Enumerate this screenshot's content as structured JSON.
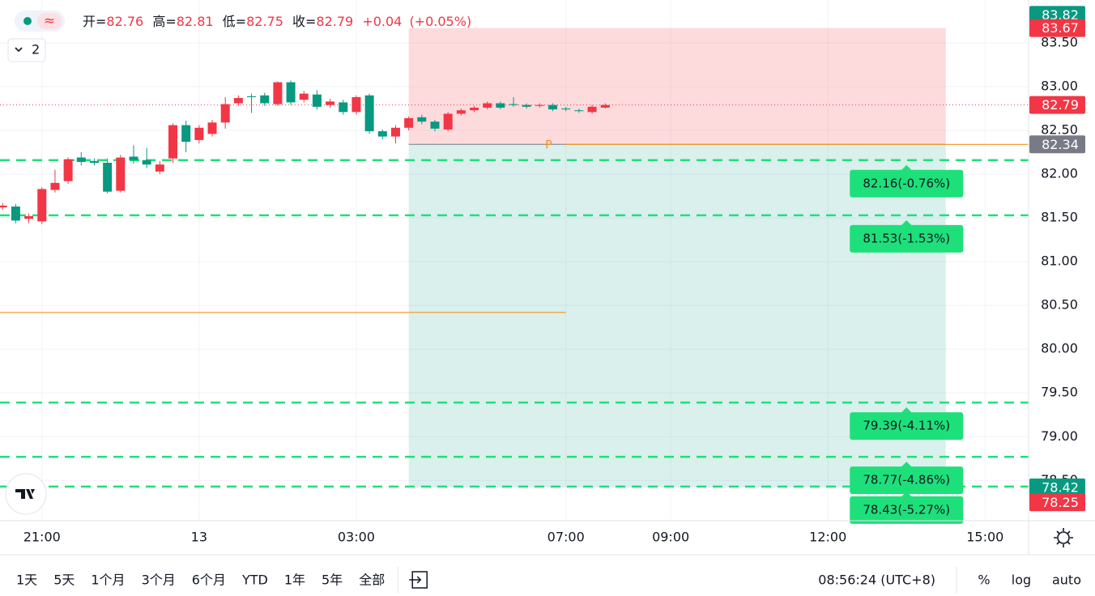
{
  "header": {
    "open_label": "开=",
    "open": 82.76,
    "high_label": "高=",
    "high": 82.81,
    "low_label": "低=",
    "low": 82.75,
    "close_label": "收=",
    "close": 82.79,
    "change": "+0.04",
    "change_pct": "(+0.05%)"
  },
  "interval_button": "2",
  "chart_data": {
    "type": "candlestick",
    "colors": {
      "up": "#f23645",
      "down": "#089981"
    },
    "x": [
      -3.75,
      -3.5,
      -3.25,
      -3,
      -2.75,
      -2.5,
      -2.25,
      -2,
      -1.75,
      -1.5,
      -1.25,
      -1,
      -0.75,
      -0.5,
      -0.25,
      0,
      0.25,
      0.5,
      0.75,
      1,
      1.25,
      1.5,
      1.75,
      2,
      2.25,
      2.5,
      2.75,
      3,
      3.25,
      3.5,
      3.75,
      4,
      4.25,
      4.5,
      4.75,
      5,
      5.25,
      5.5,
      5.75,
      6,
      6.25,
      6.5,
      6.75,
      7,
      7.25,
      7.5,
      7.75
    ],
    "open": [
      81.62,
      81.63,
      81.49,
      81.46,
      81.82,
      81.92,
      82.19,
      82.15,
      82.13,
      81.81,
      82.2,
      82.16,
      82.03,
      82.18,
      82.56,
      82.39,
      82.46,
      82.59,
      82.81,
      82.89,
      82.9,
      82.8,
      83.05,
      82.85,
      82.91,
      82.79,
      82.82,
      82.71,
      82.9,
      82.49,
      82.43,
      82.53,
      82.65,
      82.6,
      82.51,
      82.69,
      82.73,
      82.76,
      82.81,
      82.8,
      82.79,
      82.78,
      82.79,
      82.75,
      82.73,
      82.71,
      82.76
    ],
    "high": [
      81.67,
      81.66,
      81.55,
      81.85,
      82.05,
      82.19,
      82.25,
      82.18,
      82.18,
      82.22,
      82.33,
      82.3,
      82.15,
      82.58,
      82.61,
      82.56,
      82.62,
      82.88,
      82.9,
      82.92,
      82.93,
      83.06,
      83.07,
      82.95,
      82.96,
      82.86,
      82.85,
      82.9,
      82.92,
      82.51,
      82.56,
      82.66,
      82.68,
      82.62,
      82.71,
      82.75,
      82.78,
      82.83,
      82.83,
      82.88,
      82.81,
      82.81,
      82.81,
      82.77,
      82.75,
      82.79,
      82.81
    ],
    "low": [
      81.59,
      81.44,
      81.44,
      81.43,
      81.79,
      81.89,
      82.1,
      82.1,
      81.78,
      81.79,
      82.12,
      82.07,
      82.0,
      82.13,
      82.25,
      82.35,
      82.43,
      82.52,
      82.78,
      82.7,
      82.78,
      82.78,
      82.79,
      82.82,
      82.74,
      82.76,
      82.68,
      82.68,
      82.46,
      82.4,
      82.35,
      82.5,
      82.57,
      82.49,
      82.49,
      82.67,
      82.71,
      82.74,
      82.74,
      82.77,
      82.75,
      82.76,
      82.72,
      82.72,
      82.7,
      82.69,
      82.75
    ],
    "close": [
      81.64,
      81.47,
      81.52,
      81.83,
      81.9,
      82.17,
      82.14,
      82.13,
      81.8,
      82.19,
      82.16,
      82.11,
      82.11,
      82.56,
      82.37,
      82.53,
      82.59,
      82.8,
      82.87,
      82.88,
      82.81,
      83.05,
      82.82,
      82.92,
      82.77,
      82.83,
      82.71,
      82.88,
      82.49,
      82.43,
      82.53,
      82.64,
      82.6,
      82.52,
      82.69,
      82.73,
      82.76,
      82.81,
      82.76,
      82.79,
      82.77,
      82.79,
      82.74,
      82.74,
      82.72,
      82.77,
      82.79
    ],
    "xlim": [
      -3.8,
      15.83
    ],
    "xticks": [
      {
        "value": -3,
        "label": "21:00"
      },
      {
        "value": 0,
        "label": "13"
      },
      {
        "value": 3,
        "label": "03:00"
      },
      {
        "value": 7,
        "label": "07:00"
      },
      {
        "value": 9,
        "label": "09:00"
      },
      {
        "value": 12,
        "label": "12:00"
      },
      {
        "value": 15,
        "label": "15:00"
      }
    ],
    "ylim": [
      78.04,
      83.99
    ],
    "yticks": [
      {
        "value": 78.5,
        "label": "78.50"
      },
      {
        "value": 79,
        "label": "79.00"
      },
      {
        "value": 79.5,
        "label": "79.50"
      },
      {
        "value": 80,
        "label": "80.00"
      },
      {
        "value": 80.5,
        "label": "80.50"
      },
      {
        "value": 81,
        "label": "81.00"
      },
      {
        "value": 81.5,
        "label": "81.50"
      },
      {
        "value": 82,
        "label": "82.00"
      },
      {
        "value": 82.5,
        "label": "82.50"
      },
      {
        "value": 83,
        "label": "83.00"
      },
      {
        "value": 83.5,
        "label": "83.50"
      }
    ],
    "grid": true,
    "current_price": 82.79,
    "position": {
      "x": [
        4,
        14.25
      ],
      "entry": 82.34,
      "target": 83.67,
      "stop": 78.42,
      "marker": "P",
      "marker_x": 6.67
    },
    "levels": [
      {
        "value": 80.42,
        "x": [
          -3.8,
          7
        ]
      },
      {
        "value": 82.34,
        "x": [
          7,
          15.83
        ]
      }
    ],
    "level_color": "#f7931a",
    "target_color": "#1ee07a",
    "targets": [
      {
        "value": 82.16,
        "label": "82.16(-0.76%)"
      },
      {
        "value": 81.53,
        "label": "81.53(-1.53%)"
      },
      {
        "value": 79.39,
        "label": "79.39(-4.11%)"
      },
      {
        "value": 78.77,
        "label": "78.77(-4.86%)"
      },
      {
        "value": 78.43,
        "label": "78.43(-5.27%)"
      }
    ],
    "target_label_x": 13.5,
    "price_tags": [
      {
        "value": 83.82,
        "color": "#089981"
      },
      {
        "value": 83.67,
        "color": "#f23645"
      },
      {
        "value": 82.79,
        "color": "#f23645"
      },
      {
        "value": 82.34,
        "color": "#787b86"
      },
      {
        "value": 78.42,
        "color": "#089981"
      },
      {
        "value": 78.25,
        "color": "#f23645"
      }
    ]
  },
  "toolbar": {
    "ranges": [
      "1天",
      "5天",
      "1个月",
      "3个月",
      "6个月",
      "YTD",
      "1年",
      "5年",
      "全部"
    ],
    "clock": "08:56:24 (UTC+8)",
    "options": [
      "%",
      "log",
      "auto"
    ]
  }
}
